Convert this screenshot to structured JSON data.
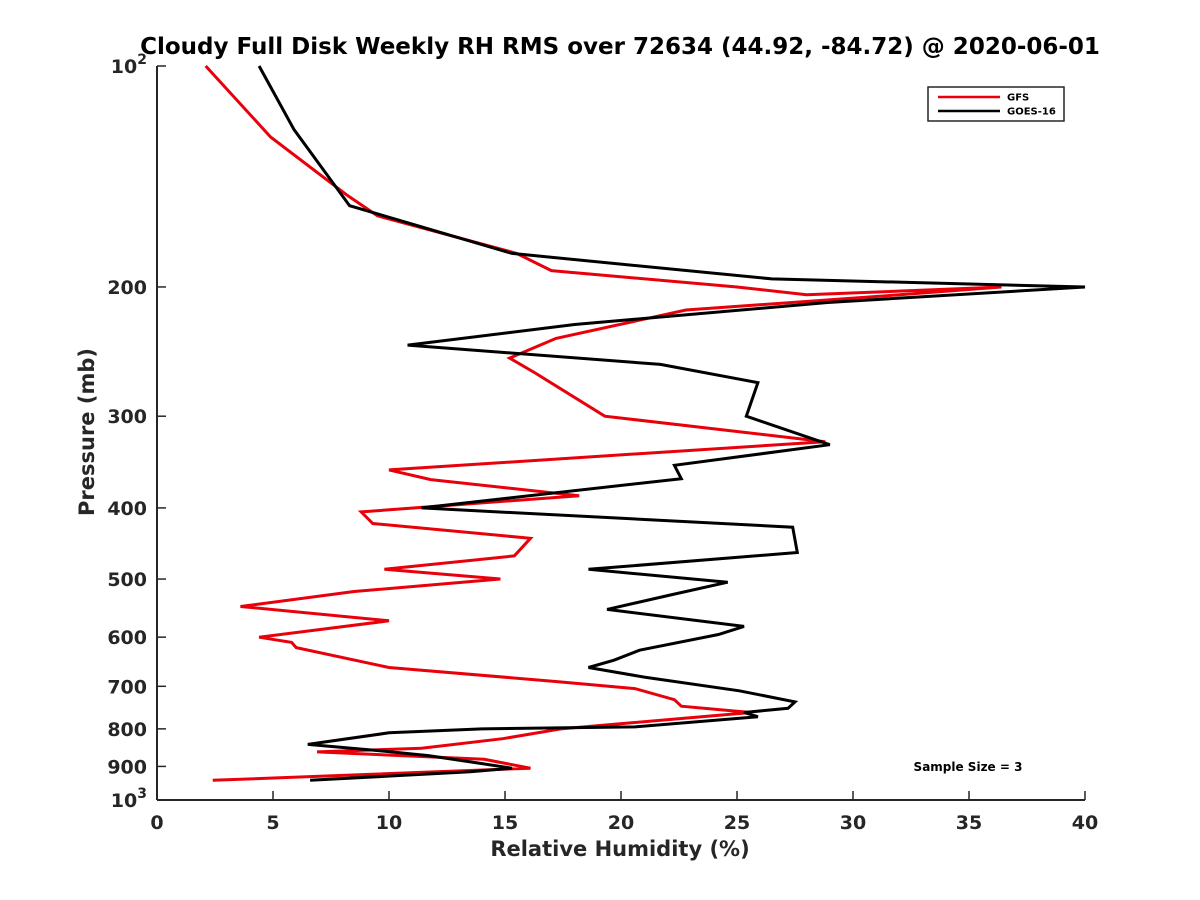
{
  "chart_data": {
    "type": "line",
    "title": "Cloudy Full Disk Weekly RH RMS over 72634 (44.92, -84.72) @ 2020-06-01",
    "xlabel": "Relative Humidity (%)",
    "ylabel": "Pressure (mb)",
    "xlim": [
      0,
      40
    ],
    "ylim": [
      1000,
      100
    ],
    "yscale": "log",
    "y_reversed": true,
    "grid": false,
    "legend_position": "top-right",
    "annotation": "Sample Size = 3",
    "xticks": [
      0,
      5,
      10,
      15,
      20,
      25,
      30,
      35,
      40
    ],
    "xtick_labels": [
      "0",
      "5",
      "10",
      "15",
      "20",
      "25",
      "30",
      "35",
      "40"
    ],
    "yticks": [
      100,
      200,
      300,
      400,
      500,
      600,
      700,
      800,
      900,
      1000
    ],
    "ytick_labels": [
      {
        "base": "10",
        "exp": "2"
      },
      {
        "base": "200"
      },
      {
        "base": "300"
      },
      {
        "base": "400"
      },
      {
        "base": "500"
      },
      {
        "base": "600"
      },
      {
        "base": "700"
      },
      {
        "base": "800"
      },
      {
        "base": "900"
      },
      {
        "base": "10",
        "exp": "3"
      }
    ],
    "series": [
      {
        "name": "GFS",
        "color": "#e8000b",
        "points": [
          [
            2.1,
            100
          ],
          [
            4.9,
            125
          ],
          [
            8.2,
            150
          ],
          [
            9.5,
            160
          ],
          [
            15.5,
            180
          ],
          [
            17,
            190
          ],
          [
            25,
            200
          ],
          [
            28,
            205
          ],
          [
            36.4,
            200
          ],
          [
            32,
            205
          ],
          [
            22.8,
            215
          ],
          [
            17.2,
            235
          ],
          [
            15.2,
            250
          ],
          [
            16.3,
            262
          ],
          [
            19.3,
            300
          ],
          [
            28.8,
            325
          ],
          [
            10,
            355
          ],
          [
            11.8,
            366
          ],
          [
            18.2,
            385
          ],
          [
            8.8,
            405
          ],
          [
            9.3,
            420
          ],
          [
            16.1,
            440
          ],
          [
            15.4,
            465
          ],
          [
            9.8,
            485
          ],
          [
            14.8,
            500
          ],
          [
            8.5,
            520
          ],
          [
            3.6,
            545
          ],
          [
            10,
            570
          ],
          [
            4.4,
            600
          ],
          [
            5.8,
            610
          ],
          [
            6,
            620
          ],
          [
            10,
            660
          ],
          [
            17.3,
            690
          ],
          [
            20.6,
            705
          ],
          [
            22.3,
            730
          ],
          [
            22.6,
            745
          ],
          [
            25.6,
            760
          ],
          [
            17.4,
            800
          ],
          [
            14.9,
            825
          ],
          [
            11.4,
            850
          ],
          [
            6.9,
            860
          ],
          [
            14.1,
            880
          ],
          [
            16.1,
            905
          ],
          [
            2.4,
            940
          ]
        ]
      },
      {
        "name": "GOES-16",
        "color": "#000000",
        "points": [
          [
            4.4,
            100
          ],
          [
            5.9,
            122
          ],
          [
            8.3,
            155
          ],
          [
            15.3,
            180
          ],
          [
            26.5,
            195
          ],
          [
            40,
            200
          ],
          [
            28.9,
            210
          ],
          [
            18,
            225
          ],
          [
            10.8,
            240
          ],
          [
            21.7,
            255
          ],
          [
            25.9,
            270
          ],
          [
            25.4,
            300
          ],
          [
            29,
            328
          ],
          [
            22.3,
            350
          ],
          [
            22.6,
            365
          ],
          [
            11.4,
            400
          ],
          [
            27.4,
            425
          ],
          [
            27.6,
            460
          ],
          [
            18.6,
            485
          ],
          [
            24.6,
            505
          ],
          [
            22.2,
            525
          ],
          [
            19.4,
            550
          ],
          [
            25.3,
            580
          ],
          [
            24.2,
            595
          ],
          [
            20.8,
            625
          ],
          [
            19.7,
            645
          ],
          [
            18.6,
            660
          ],
          [
            21,
            680
          ],
          [
            25.1,
            710
          ],
          [
            27.5,
            735
          ],
          [
            27.2,
            750
          ],
          [
            25.3,
            760
          ],
          [
            25.9,
            770
          ],
          [
            20.6,
            795
          ],
          [
            14,
            800
          ],
          [
            10,
            810
          ],
          [
            6.5,
            840
          ],
          [
            9.3,
            855
          ],
          [
            11.7,
            870
          ],
          [
            13.8,
            890
          ],
          [
            15.3,
            905
          ],
          [
            13.5,
            915
          ],
          [
            6.6,
            940
          ]
        ]
      }
    ]
  }
}
